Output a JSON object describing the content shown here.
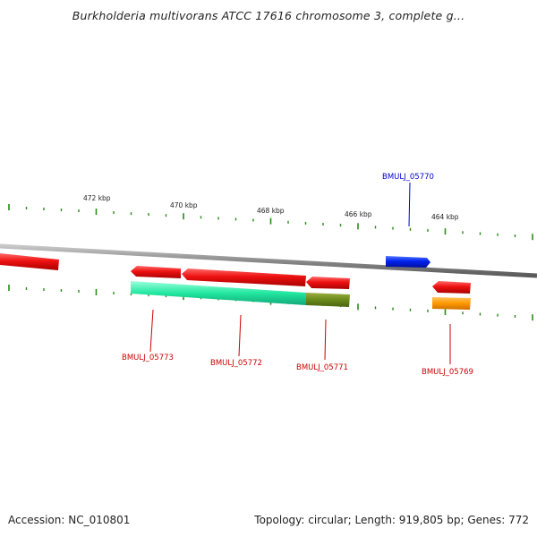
{
  "title": "Burkholderia multivorans ATCC 17616 chromosome 3, complete g...",
  "footer": {
    "accession": "Accession: NC_010801",
    "summary": "Topology: circular; Length: 919,805 bp; Genes: 772"
  },
  "scale_labels": [
    "472 kbp",
    "470 kbp",
    "468 kbp",
    "466 kbp",
    "464 kbp"
  ],
  "gene_labels": [
    {
      "text": "BMULJ_05770",
      "color": "#0000cc"
    },
    {
      "text": "BMULJ_05773",
      "color": "#cc0000"
    },
    {
      "text": "BMULJ_05772",
      "color": "#cc0000"
    },
    {
      "text": "BMULJ_05771",
      "color": "#cc0000"
    },
    {
      "text": "BMULJ_05769",
      "color": "#cc0000"
    }
  ],
  "colors": {
    "forward_gene": "#0022ee",
    "reverse_gene": "#ee1111",
    "feature_green": "#22e8a0",
    "feature_olive": "#6a8a1a",
    "feature_orange": "#ff9900",
    "backbone": "#888888",
    "tick": "#2a8a1a"
  }
}
